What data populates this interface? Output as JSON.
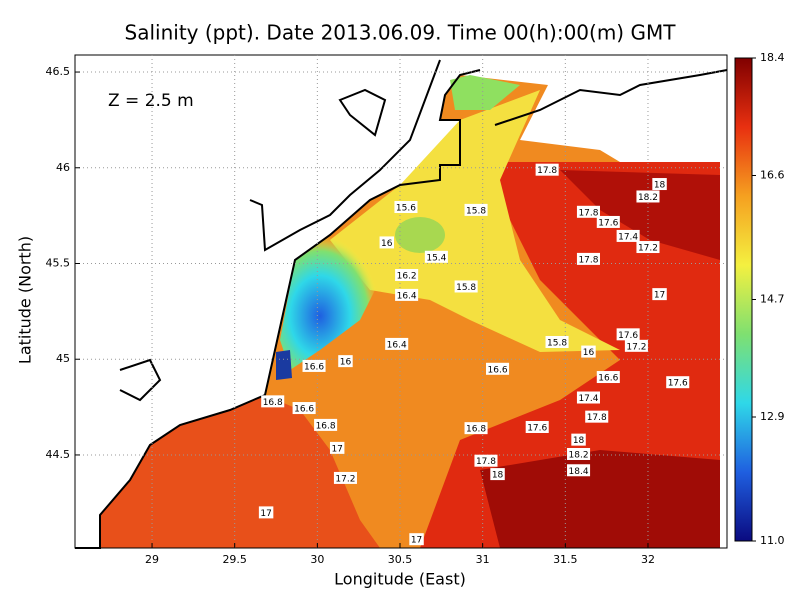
{
  "chart_data": {
    "type": "contour",
    "title": "Salinity (ppt). Date 2013.06.09. Time 00(h):00(m) GMT",
    "annotation": "Z = 2.5 m",
    "xlabel": "Longitude (East)",
    "ylabel": "Latitude (North)",
    "xlim": [
      28.534,
      32.478
    ],
    "ylim": [
      44.014,
      46.589
    ],
    "xticks": [
      29,
      29.5,
      30,
      30.5,
      31,
      31.5,
      32
    ],
    "yticks": [
      44.5,
      45,
      45.5,
      46,
      46.5
    ],
    "grid": true,
    "colorbar": {
      "lim": [
        11,
        18.4
      ],
      "ticks": [
        {
          "value": 11,
          "label": "11.0"
        },
        12.9,
        14.7,
        16.6,
        18.4
      ],
      "colors": [
        "#0a0a80",
        "#1f5fe0",
        "#2fd8e8",
        "#7fe070",
        "#f4f040",
        "#f5a020",
        "#e83010",
        "#800000"
      ]
    },
    "contour_labels": {
      "x": [
        30.536,
        30.96,
        30.42,
        30.72,
        30.54,
        30.54,
        30.9,
        30.48,
        31.45,
        30.17,
        29.98,
        29.73,
        29.92,
        30.05,
        30.12,
        30.17,
        29.69,
        31.09,
        30.96,
        30.6,
        31.39,
        32.07,
        32.0,
        31.64,
        31.76,
        31.88,
        32.0,
        31.64,
        32.07,
        31.88,
        31.93,
        31.64,
        31.76,
        32.18,
        31.64,
        31.69,
        31.33,
        31.58,
        31.58,
        31.02,
        31.09,
        31.58
      ],
      "y": [
        45.795,
        45.78,
        45.61,
        45.535,
        45.44,
        45.336,
        45.38,
        45.08,
        45.09,
        44.99,
        44.965,
        44.78,
        44.745,
        44.657,
        44.537,
        44.38,
        44.2,
        44.95,
        44.64,
        44.06,
        45.99,
        45.915,
        45.85,
        45.77,
        45.717,
        45.644,
        45.586,
        45.524,
        45.34,
        45.13,
        45.07,
        45.04,
        44.907,
        44.88,
        44.8,
        44.7,
        44.646,
        44.58,
        44.505,
        44.47,
        44.4,
        44.42
      ],
      "values": [
        15.6,
        15.8,
        16,
        15.4,
        16.2,
        16.4,
        15.8,
        16.4,
        15.8,
        16,
        16.6,
        16.8,
        16.6,
        16.8,
        17,
        17.2,
        17,
        16.6,
        16.8,
        17,
        17.8,
        18,
        18.2,
        17.8,
        17.6,
        17.4,
        17.2,
        17.8,
        17,
        17.6,
        17.2,
        16,
        16.6,
        17.6,
        17.4,
        17.8,
        17.6,
        18,
        18.2,
        17.8,
        18,
        18.4
      ]
    }
  }
}
